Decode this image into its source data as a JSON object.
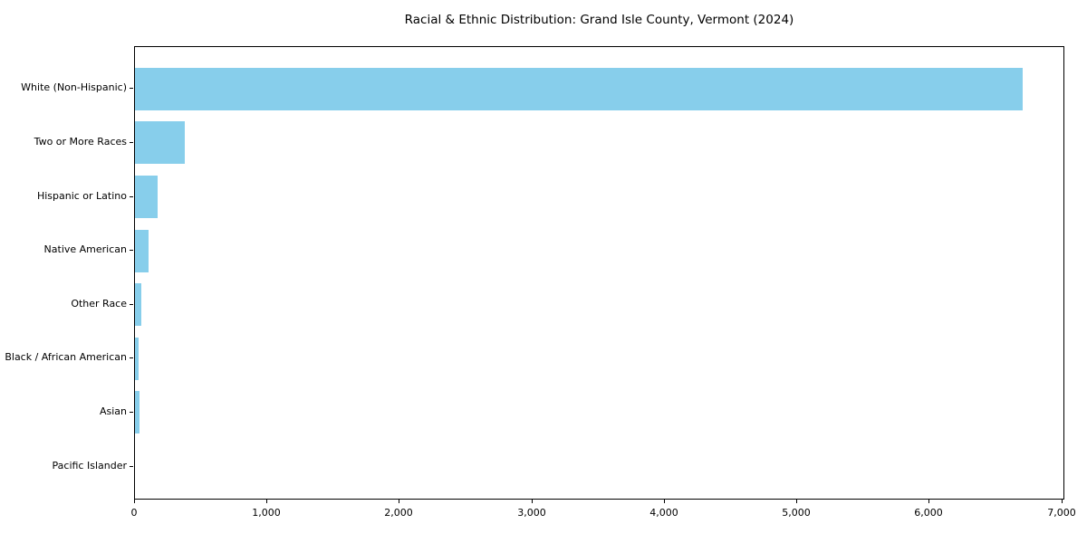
{
  "chart_data": {
    "type": "bar",
    "orientation": "horizontal",
    "title": "Racial & Ethnic Distribution: Grand Isle County, Vermont (2024)",
    "categories": [
      "White (Non-Hispanic)",
      "Two or More Races",
      "Hispanic or Latino",
      "Native American",
      "Other Race",
      "Black / African American",
      "Asian",
      "Pacific Islander"
    ],
    "values": [
      6705,
      375,
      170,
      100,
      46,
      27,
      33,
      0
    ],
    "xlabel": "",
    "ylabel": "",
    "xlim": [
      0,
      7000
    ],
    "xticks": [
      0,
      1000,
      2000,
      3000,
      4000,
      5000,
      6000,
      7000
    ],
    "xtick_labels": [
      "0",
      "1,000",
      "2,000",
      "3,000",
      "4,000",
      "5,000",
      "6,000",
      "7,000"
    ],
    "bar_color": "#87CEEB",
    "axis_color": "#000000",
    "grid": false,
    "legend": null,
    "plot_background": "#ffffff"
  }
}
